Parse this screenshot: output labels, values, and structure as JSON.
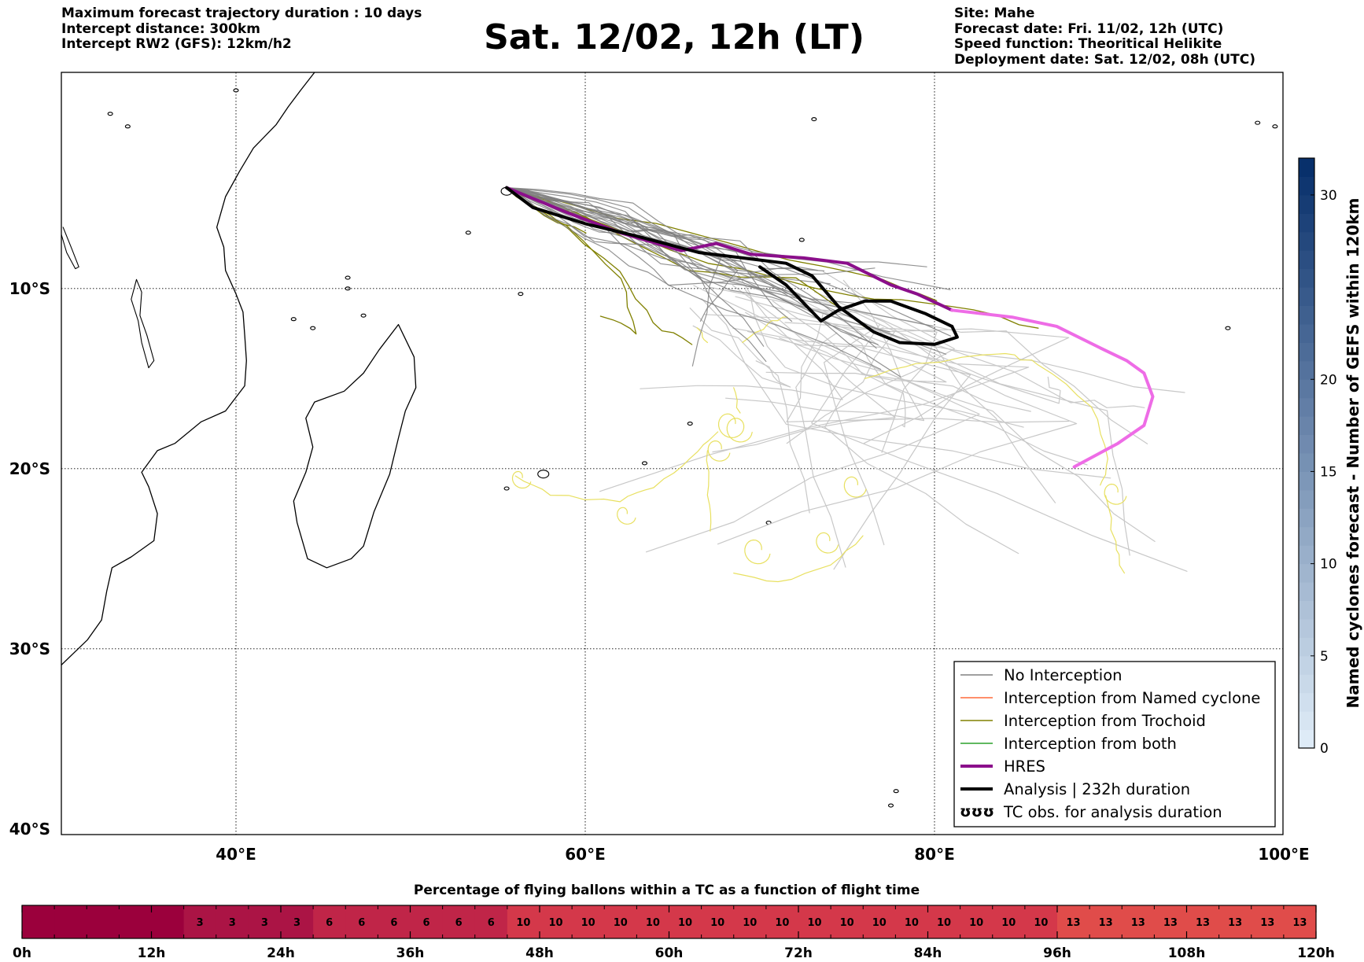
{
  "header": {
    "left": [
      "Maximum forecast trajectory duration : 10 days",
      "Intercept distance: 300km",
      "Intercept RW2 (GFS):  12km/h2"
    ],
    "title": "Sat. 12/02, 12h (LT)",
    "right": [
      "Site: Mahe",
      "Forecast date: Fri. 11/02, 12h (UTC)",
      "Speed function: Theoritical Helikite",
      "Deployment date: Sat. 12/02, 08h (UTC)"
    ]
  },
  "colors": {
    "no_interception": "#808080",
    "named_cyclone": "#ff6a3a",
    "trochoid": "#808000",
    "both": "#2ca02c",
    "hres": "#8b0f8b",
    "hres_extension": "#ee6ce6",
    "analysis": "#000000",
    "tc_obs": "#e8e060",
    "light_tracks": "#c8c8c8"
  },
  "chart_data": [
    {
      "type": "line",
      "title": "Sat. 12/02, 12h (LT)",
      "x_axis": {
        "range": [
          30,
          100
        ],
        "ticks": [
          40,
          60,
          80,
          100
        ],
        "tick_labels": [
          "40°E",
          "60°E",
          "80°E",
          "100°E"
        ]
      },
      "y_axis": {
        "range": [
          -40,
          2
        ],
        "ticks": [
          -10,
          -20,
          -30,
          -40
        ],
        "tick_labels": [
          "10°S",
          "20°S",
          "30°S",
          "40°S"
        ]
      },
      "grid": true,
      "legend_position": "bottom-right",
      "legend": [
        "No Interception",
        "Interception from Named cyclone",
        "Interception from Trochoid",
        "Interception from both",
        "HRES",
        "Analysis | 232h duration",
        "TC obs. for analysis duration"
      ],
      "legend_symbol": "ʊʊʊ",
      "series": [
        {
          "name": "HRES",
          "x": [
            55.5,
            57,
            59,
            62,
            65.5,
            67.5,
            69.5,
            72.5,
            75,
            77.5,
            79,
            81,
            84.5,
            87,
            89.5,
            91,
            92,
            92.5,
            92,
            90.5,
            88
          ],
          "y": [
            -4.4,
            -5.0,
            -5.8,
            -6.9,
            -7.9,
            -7.5,
            -8.1,
            -8.3,
            -8.6,
            -9.8,
            -10.3,
            -11.2,
            -11.6,
            -12.1,
            -13.3,
            -14.0,
            -14.7,
            -16.0,
            -17.6,
            -18.6,
            -19.9
          ]
        },
        {
          "name": "Analysis | 232h duration",
          "x": [
            55.5,
            57,
            60,
            63,
            66.5,
            69,
            71.5,
            73,
            74.5,
            76.5,
            78,
            80,
            81.3,
            81,
            79.5,
            77.5,
            76,
            74.5,
            73.5,
            72.5,
            71.5,
            70
          ],
          "y": [
            -4.4,
            -5.5,
            -6.4,
            -7.1,
            -8.0,
            -8.3,
            -8.6,
            -9.3,
            -11.0,
            -12.4,
            -13.0,
            -13.1,
            -12.7,
            -12.1,
            -11.4,
            -10.7,
            -10.7,
            -11.2,
            -11.8,
            -10.8,
            -9.8,
            -8.8
          ]
        }
      ]
    },
    {
      "type": "heatmap",
      "title": "Named cyclones forecast - Number of GEFS within 120km",
      "ylim": [
        0,
        32
      ],
      "ticks": [
        0,
        5,
        10,
        15,
        20,
        30
      ]
    },
    {
      "type": "heatmap",
      "title": "Percentage of flying ballons within a TC as a function of flight time",
      "x_ticks": [
        "0h",
        "12h",
        "24h",
        "36h",
        "48h",
        "60h",
        "72h",
        "84h",
        "96h",
        "108h",
        "120h"
      ],
      "cell_hours": 3,
      "values": [
        0,
        0,
        0,
        0,
        0,
        3,
        3,
        3,
        3,
        6,
        6,
        6,
        6,
        6,
        6,
        10,
        10,
        10,
        10,
        10,
        10,
        10,
        10,
        10,
        10,
        10,
        10,
        10,
        10,
        10,
        10,
        10,
        13,
        13,
        13,
        13,
        13,
        13,
        13,
        13
      ]
    }
  ]
}
